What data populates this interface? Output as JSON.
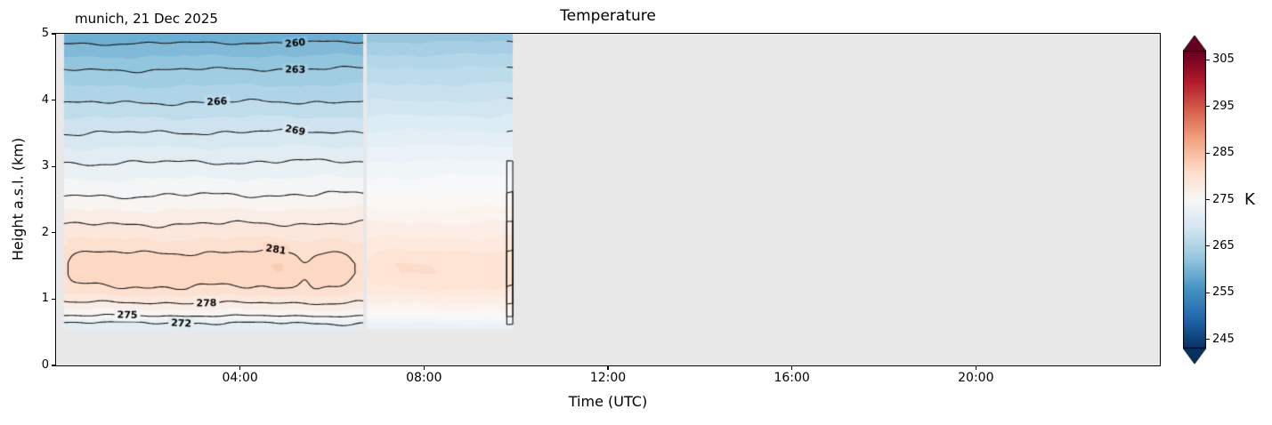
{
  "title": "Temperature",
  "annotation": "munich, 21 Dec 2025",
  "axes": {
    "xlabel": "Time (UTC)",
    "ylabel": "Height a.s.l. (km)",
    "xticks": [
      {
        "hour": 4,
        "label": "04:00"
      },
      {
        "hour": 8,
        "label": "08:00"
      },
      {
        "hour": 12,
        "label": "12:00"
      },
      {
        "hour": 16,
        "label": "16:00"
      },
      {
        "hour": 20,
        "label": "20:00"
      }
    ],
    "yticks": [
      {
        "km": 0,
        "label": "0"
      },
      {
        "km": 1,
        "label": "1"
      },
      {
        "km": 2,
        "label": "2"
      },
      {
        "km": 3,
        "label": "3"
      },
      {
        "km": 4,
        "label": "4"
      },
      {
        "km": 5,
        "label": "5"
      }
    ]
  },
  "colorbar": {
    "label": "K",
    "ticks": [
      245,
      255,
      265,
      275,
      285,
      295,
      305
    ],
    "vmin": 243,
    "vmax": 307,
    "cmap": "RdBu_r",
    "extend": "both"
  },
  "chart_data": {
    "type": "contour",
    "title": "Temperature",
    "site_date": "munich, 21 Dec 2025",
    "xlabel": "Time (UTC)",
    "ylabel": "Height a.s.l. (km)",
    "units": "K",
    "x_range_hours": [
      0,
      24
    ],
    "y_range_km": [
      0,
      5
    ],
    "data_height_range_km": [
      0.55,
      5.0
    ],
    "data_blocks_hours": [
      [
        0.17,
        6.68
      ],
      [
        6.75,
        9.93
      ]
    ],
    "contour_line_levels_K": [
      260,
      263,
      266,
      269,
      272,
      275,
      278,
      281
    ],
    "contour_label_positions": [
      {
        "level": 260,
        "t": 5.2,
        "branch": 0
      },
      {
        "level": 263,
        "t": 5.2,
        "branch": 0
      },
      {
        "level": 266,
        "t": 3.5,
        "branch": 0
      },
      {
        "level": 269,
        "t": 5.2,
        "branch": 0
      },
      {
        "level": 272,
        "t": 2.72,
        "branch": 0
      },
      {
        "level": 275,
        "t": 1.55,
        "branch": 0
      },
      {
        "level": 278,
        "t": 3.27,
        "branch": 0
      },
      {
        "level": 281,
        "t": 4.78,
        "branch": 1
      }
    ],
    "temperature_profile": [
      {
        "height_km": 0.55,
        "K": 270.8
      },
      {
        "height_km": 0.65,
        "K": 272.0
      },
      {
        "height_km": 0.75,
        "K": 275.0
      },
      {
        "height_km": 0.95,
        "K": 278.0
      },
      {
        "height_km": 1.15,
        "K": 280.7
      },
      {
        "height_km": 1.4,
        "K": 282.1
      },
      {
        "height_km": 1.52,
        "K": 282.1
      },
      {
        "height_km": 1.65,
        "K": 281.3
      },
      {
        "height_km": 1.85,
        "K": 279.8
      },
      {
        "height_km": 2.12,
        "K": 278.0
      },
      {
        "height_km": 2.55,
        "K": 275.0
      },
      {
        "height_km": 3.05,
        "K": 272.0
      },
      {
        "height_km": 3.5,
        "K": 269.0
      },
      {
        "height_km": 3.95,
        "K": 266.0
      },
      {
        "height_km": 4.45,
        "K": 263.0
      },
      {
        "height_km": 4.85,
        "K": 260.0
      },
      {
        "height_km": 5.0,
        "K": 258.7
      }
    ],
    "fill_levels_step_K": 1.5,
    "background_color": "#e8e8e8",
    "cmap_anchors": [
      "#053061",
      "#2166ac",
      "#4393c3",
      "#92c5de",
      "#d1e5f0",
      "#f7f7f7",
      "#fddbc7",
      "#f4a582",
      "#d6604d",
      "#b2182b",
      "#67001f"
    ]
  }
}
